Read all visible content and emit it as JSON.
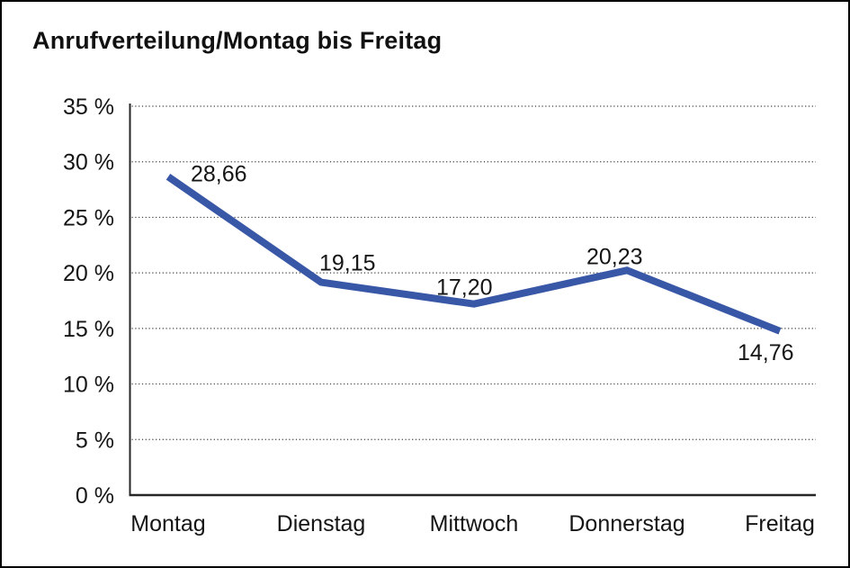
{
  "title": "Anrufverteilung/Montag bis Freitag",
  "chart_data": {
    "type": "line",
    "title": "Anrufverteilung/Montag bis Freitag",
    "categories": [
      "Montag",
      "Dienstag",
      "Mittwoch",
      "Donnerstag",
      "Freitag"
    ],
    "series": [
      {
        "name": "Anrufverteilung",
        "values": [
          28.66,
          19.15,
          17.2,
          20.23,
          14.76
        ]
      }
    ],
    "point_labels": [
      "28,66",
      "19,15",
      "17,20",
      "20,23",
      "14,76"
    ],
    "y_ticks": [
      0,
      5,
      10,
      15,
      20,
      25,
      30,
      35
    ],
    "y_tick_labels": [
      "0 %",
      "5 %",
      "10 %",
      "15 %",
      "20 %",
      "25 %",
      "30 %",
      "35 %"
    ],
    "ylim": [
      0,
      35
    ],
    "xlabel": "",
    "ylabel": "",
    "grid": "horizontal-dotted",
    "legend": "none",
    "colors": {
      "line": "#3857A6",
      "axis": "#262626",
      "gridline": "#3c3c3c",
      "text": "#151515"
    }
  }
}
